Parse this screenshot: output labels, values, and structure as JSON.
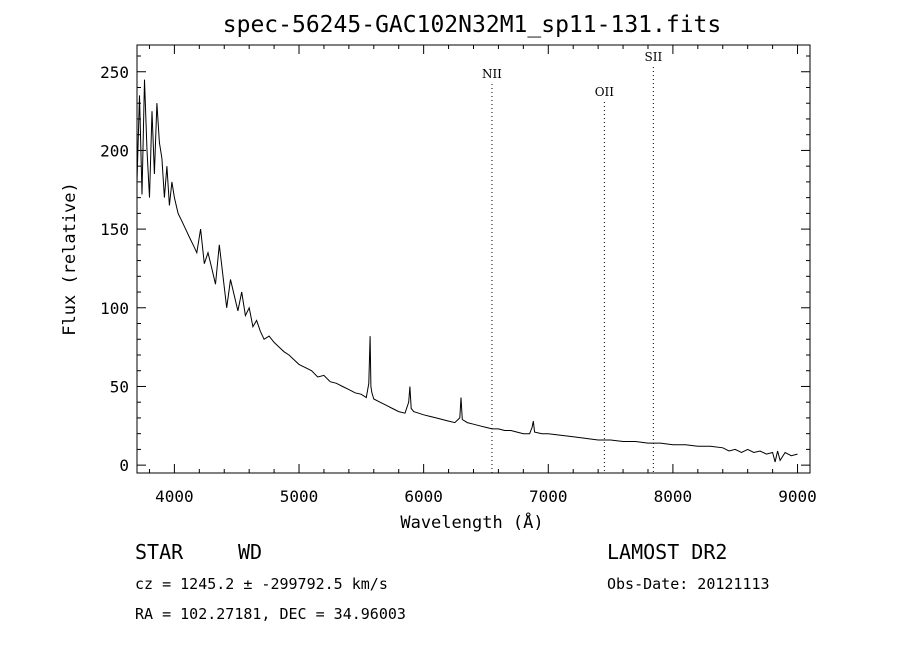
{
  "chart_data": {
    "type": "line",
    "title": "spec-56245-GAC102N32M1_sp11-131.fits",
    "xlabel": "Wavelength (Å)",
    "ylabel": "Flux (relative)",
    "xlim": [
      3700,
      9100
    ],
    "ylim": [
      -5,
      267
    ],
    "xticks": [
      4000,
      5000,
      6000,
      7000,
      8000,
      9000
    ],
    "yticks": [
      0,
      50,
      100,
      150,
      200,
      250
    ],
    "grid": false,
    "line_color": "#000000",
    "spectrum_x": [
      3700,
      3720,
      3740,
      3760,
      3780,
      3800,
      3820,
      3840,
      3860,
      3880,
      3900,
      3920,
      3940,
      3960,
      3980,
      4000,
      4030,
      4060,
      4090,
      4120,
      4150,
      4180,
      4210,
      4240,
      4270,
      4300,
      4330,
      4360,
      4390,
      4420,
      4450,
      4480,
      4510,
      4540,
      4570,
      4600,
      4630,
      4660,
      4690,
      4720,
      4760,
      4800,
      4840,
      4880,
      4920,
      4960,
      5000,
      5050,
      5100,
      5150,
      5200,
      5250,
      5300,
      5350,
      5400,
      5450,
      5500,
      5540,
      5560,
      5570,
      5577,
      5585,
      5600,
      5650,
      5700,
      5750,
      5800,
      5850,
      5880,
      5890,
      5900,
      5920,
      5960,
      6000,
      6050,
      6100,
      6150,
      6200,
      6250,
      6290,
      6300,
      6310,
      6350,
      6400,
      6450,
      6500,
      6550,
      6600,
      6650,
      6700,
      6750,
      6800,
      6850,
      6870,
      6880,
      6890,
      6950,
      7000,
      7100,
      7200,
      7300,
      7400,
      7500,
      7600,
      7700,
      7800,
      7900,
      8000,
      8100,
      8200,
      8300,
      8400,
      8450,
      8500,
      8550,
      8600,
      8650,
      8700,
      8750,
      8800,
      8820,
      8840,
      8860,
      8900,
      8950,
      9000
    ],
    "spectrum_flux": [
      180,
      235,
      172,
      245,
      200,
      170,
      225,
      185,
      230,
      205,
      195,
      170,
      190,
      165,
      180,
      170,
      160,
      155,
      150,
      145,
      140,
      135,
      150,
      128,
      135,
      125,
      115,
      140,
      120,
      100,
      118,
      108,
      98,
      110,
      95,
      100,
      88,
      92,
      85,
      80,
      82,
      78,
      75,
      72,
      70,
      67,
      64,
      62,
      60,
      56,
      57,
      53,
      52,
      50,
      48,
      46,
      45,
      43,
      52,
      82,
      50,
      46,
      42,
      40,
      38,
      36,
      34,
      33,
      40,
      50,
      36,
      34,
      33,
      32,
      31,
      30,
      29,
      28,
      27,
      30,
      43,
      29,
      27,
      26,
      25,
      24,
      23,
      23,
      22,
      22,
      21,
      20,
      20,
      24,
      28,
      21,
      20,
      20,
      19,
      18,
      17,
      16,
      16,
      15,
      15,
      14,
      14,
      13,
      13,
      12,
      12,
      11,
      9,
      10,
      8,
      10,
      8,
      9,
      7,
      8,
      2,
      9,
      3,
      8,
      6,
      7
    ],
    "emission_lines": [
      {
        "name": "NII",
        "wavelength": 6548
      },
      {
        "name": "OII",
        "wavelength": 7450
      },
      {
        "name": "SII",
        "wavelength": 7843
      }
    ]
  },
  "footer": {
    "class_label": "STAR",
    "subclass_label": "WD",
    "survey": "LAMOST DR2",
    "cz_text": "cz = 1245.2 ± -299792.5 km/s",
    "obs_date_text": "Obs-Date: 20121113",
    "coords_text": "RA = 102.27181, DEC =  34.96003"
  }
}
